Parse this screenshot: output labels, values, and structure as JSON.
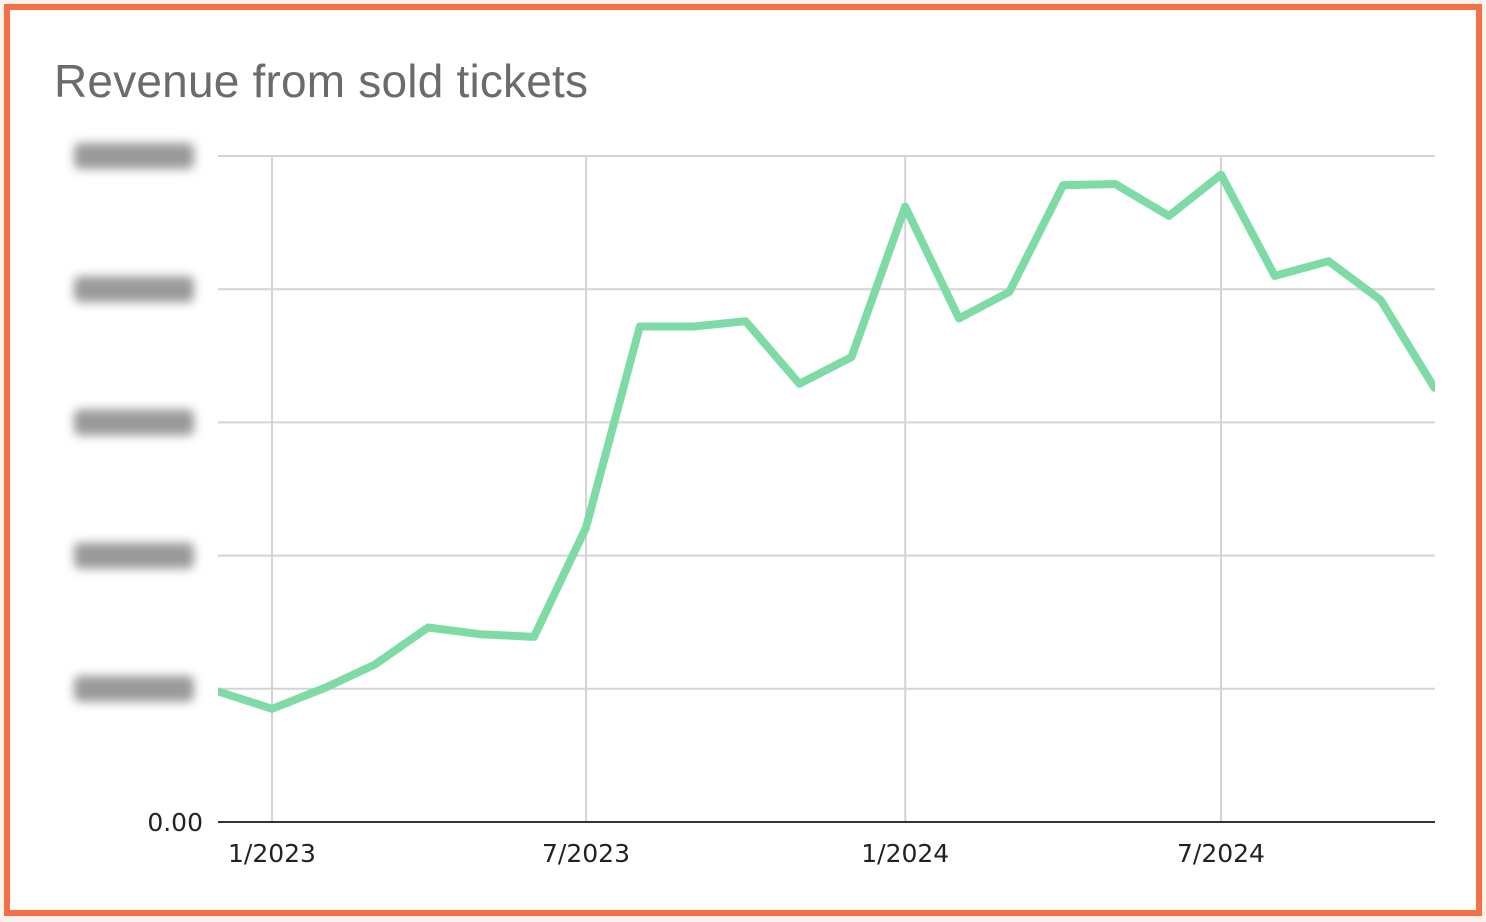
{
  "colors": {
    "frame_border": "#f47148",
    "series_line": "#7fdba5",
    "grid": "#d4d4d4",
    "axis": "#333333",
    "title": "#6b6b6b",
    "obscured_label": "#9a9a9a"
  },
  "chart_data": {
    "type": "line",
    "title": "Revenue from sold tickets",
    "xlabel": "",
    "ylabel": "",
    "x_tick_labels": [
      "1/2023",
      "7/2023",
      "1/2024",
      "7/2024"
    ],
    "y_tick_labels": [
      "0.00",
      "",
      "",
      "",
      "",
      ""
    ],
    "y_tick_labels_obscured": true,
    "ylim": [
      0,
      5
    ],
    "y_units_note": "y tick labels other than 0.00 are blurred in the image; values given in gridline units",
    "grid": true,
    "legend": "none",
    "x": [
      "2022-12",
      "2023-01",
      "2023-02",
      "2023-03",
      "2023-04",
      "2023-05",
      "2023-06",
      "2023-07",
      "2023-08",
      "2023-09",
      "2023-10",
      "2023-11",
      "2023-12",
      "2024-01",
      "2024-02",
      "2024-03",
      "2024-04",
      "2024-05",
      "2024-06",
      "2024-07",
      "2024-08",
      "2024-09",
      "2024-10",
      "2024-11"
    ],
    "series": [
      {
        "values": [
          0.98,
          0.85,
          1.01,
          1.18,
          1.46,
          1.41,
          1.39,
          2.21,
          3.72,
          3.72,
          3.76,
          3.29,
          3.49,
          4.62,
          3.78,
          3.98,
          4.78,
          4.79,
          4.55,
          4.86,
          4.1,
          4.21,
          3.92,
          3.26
        ]
      }
    ]
  }
}
